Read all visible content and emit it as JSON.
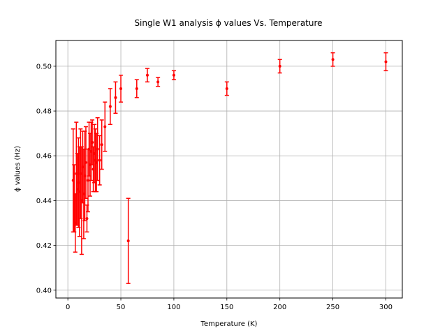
{
  "chart_data": {
    "type": "scatter",
    "title": "Single W1 analysis ϕ values Vs. Temperature",
    "xlabel": "Temperature (K)",
    "ylabel": "ϕ values (Hz)",
    "xlim": [
      -11.3,
      315.5
    ],
    "ylim": [
      0.3965,
      0.5115
    ],
    "xticks": [
      0,
      50,
      100,
      150,
      200,
      250,
      300
    ],
    "yticks": [
      0.4,
      0.42,
      0.44,
      0.46,
      0.48,
      0.5
    ],
    "xtick_labels": [
      "0",
      "50",
      "100",
      "150",
      "200",
      "250",
      "300"
    ],
    "ytick_labels": [
      "0.40",
      "0.42",
      "0.44",
      "0.46",
      "0.48",
      "0.50"
    ],
    "grid": true,
    "color": "#ff0000",
    "series": [
      {
        "x": [
          5,
          6,
          7,
          8,
          9,
          10,
          11,
          12,
          13,
          14,
          15,
          16,
          17,
          18,
          19,
          20,
          21,
          22,
          23,
          24,
          25,
          26,
          27,
          28,
          30,
          32,
          35,
          40,
          45,
          50,
          57,
          65,
          75,
          85,
          100,
          150,
          200,
          250,
          300
        ],
        "y": [
          0.449,
          0.441,
          0.43,
          0.452,
          0.445,
          0.448,
          0.444,
          0.452,
          0.44,
          0.455,
          0.443,
          0.451,
          0.457,
          0.432,
          0.449,
          0.463,
          0.456,
          0.462,
          0.466,
          0.454,
          0.461,
          0.458,
          0.457,
          0.463,
          0.458,
          0.465,
          0.473,
          0.482,
          0.486,
          0.49,
          0.422,
          0.49,
          0.496,
          0.493,
          0.496,
          0.49,
          0.5,
          0.503,
          0.502
        ],
        "yerr": [
          0.023,
          0.015,
          0.013,
          0.023,
          0.016,
          0.02,
          0.02,
          0.02,
          0.024,
          0.016,
          0.02,
          0.02,
          0.016,
          0.006,
          0.014,
          0.012,
          0.014,
          0.013,
          0.01,
          0.01,
          0.013,
          0.014,
          0.013,
          0.014,
          0.011,
          0.011,
          0.011,
          0.008,
          0.007,
          0.006,
          0.019,
          0.004,
          0.003,
          0.002,
          0.002,
          0.003,
          0.003,
          0.003,
          0.004
        ]
      }
    ]
  }
}
